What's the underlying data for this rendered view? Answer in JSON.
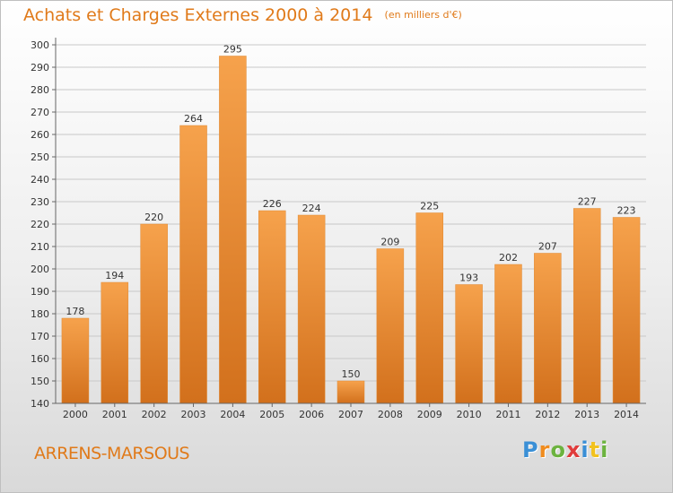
{
  "chart_data": {
    "type": "bar",
    "title": "Achats et Charges Externes 2000 à 2014",
    "subtitle": "(en milliers d'€)",
    "categories": [
      "2000",
      "2001",
      "2002",
      "2003",
      "2004",
      "2005",
      "2006",
      "2007",
      "2008",
      "2009",
      "2010",
      "2011",
      "2012",
      "2013",
      "2014"
    ],
    "values": [
      178,
      194,
      220,
      264,
      295,
      226,
      224,
      150,
      209,
      225,
      193,
      202,
      207,
      227,
      223
    ],
    "ylim": [
      140,
      300
    ],
    "yticks": [
      140,
      150,
      160,
      170,
      180,
      190,
      200,
      210,
      220,
      230,
      240,
      250,
      260,
      270,
      280,
      290,
      300
    ],
    "grid": true,
    "bar_color": "#f0922e",
    "bar_color_dark": "#d0701a"
  },
  "footer": {
    "location": "ARRENS-MARSOUS",
    "brand_letters": [
      "P",
      "r",
      "o",
      "x",
      "i",
      "t",
      "i"
    ],
    "brand_colors": [
      "#3a8fd6",
      "#f08c1e",
      "#6cb33f",
      "#e03c3c",
      "#3a8fd6",
      "#f2c21e",
      "#6cb33f"
    ]
  }
}
